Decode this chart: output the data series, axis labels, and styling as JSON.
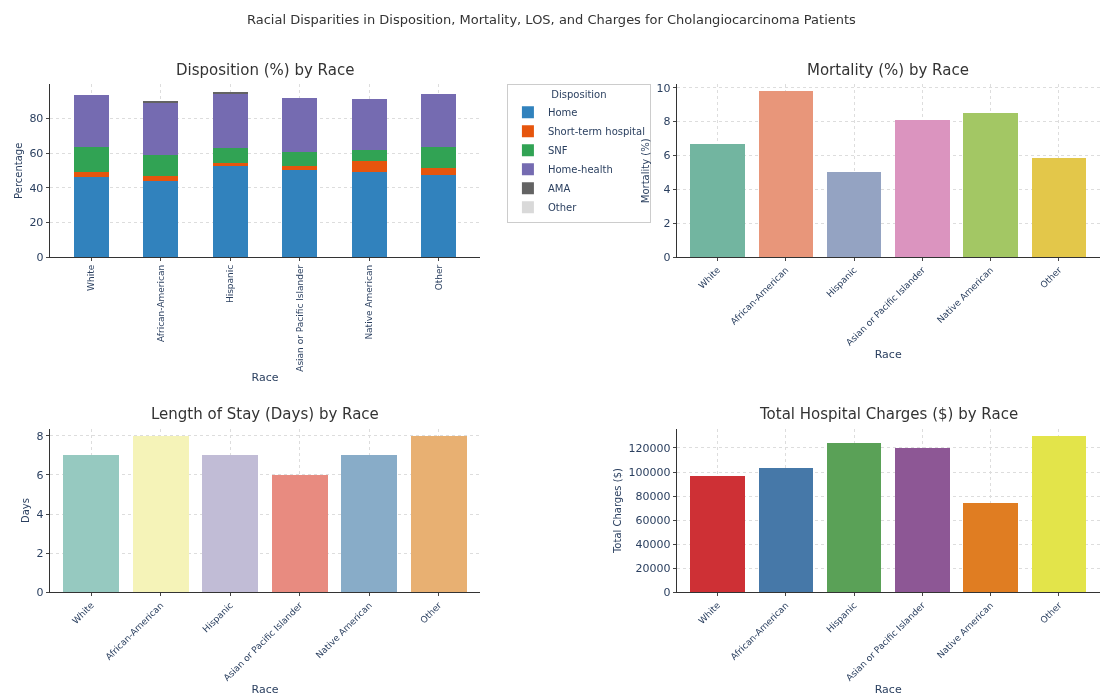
{
  "chart_data": [
    {
      "type": "bar",
      "title": "Disposition (%) by Race",
      "xlabel": "Race",
      "ylabel": "Percentage",
      "legend_title": "Disposition",
      "stacked": true,
      "legend": "right",
      "grid": true,
      "annotations": [
        "Racial Disparities in Disposition, Mortality, LOS, and Charges for Cholangiocarcinoma Patients"
      ],
      "categories": [
        "White",
        "African-American",
        "Hispanic",
        "Asian or Pacific Islander",
        "Native American",
        "Other"
      ],
      "ylim": [
        0,
        99.7
      ],
      "yticks": [
        0,
        20,
        40,
        60,
        80
      ],
      "series": [
        {
          "name": "Home",
          "color": "#3182bd",
          "values": [
            46.2,
            43.9,
            52.8,
            50.4,
            48.9,
            47.5
          ]
        },
        {
          "name": "Short-term hospital",
          "color": "#e6550d",
          "values": [
            3.1,
            3.1,
            1.5,
            2.0,
            6.4,
            3.9
          ]
        },
        {
          "name": "SNF",
          "color": "#31a354",
          "values": [
            14.3,
            11.9,
            8.7,
            8.1,
            6.5,
            12.4
          ]
        },
        {
          "name": "Home-health",
          "color": "#756bb1",
          "values": [
            29.7,
            30.2,
            30.9,
            31.1,
            29.4,
            30.1
          ]
        },
        {
          "name": "AMA",
          "color": "#636363",
          "values": [
            null,
            1.1,
            1.2,
            null,
            null,
            null
          ]
        },
        {
          "name": "Other",
          "color": "#d9d9d9",
          "values": [
            null,
            null,
            null,
            null,
            null,
            null
          ]
        }
      ]
    },
    {
      "type": "bar",
      "title": "Mortality (%) by Race",
      "xlabel": "Race",
      "ylabel": "Mortality (%)",
      "grid": true,
      "categories": [
        "White",
        "African-American",
        "Hispanic",
        "Asian or Pacific Islander",
        "Native American",
        "Other"
      ],
      "ylim": [
        0,
        10.2
      ],
      "yticks": [
        0,
        2,
        4,
        6,
        8,
        10
      ],
      "values": [
        6.7,
        9.78,
        5.05,
        8.11,
        8.53,
        5.88
      ],
      "colors": [
        "#72b5a0",
        "#e8967a",
        "#94a3c2",
        "#db94bf",
        "#a3c764",
        "#e3c74a"
      ]
    },
    {
      "type": "bar",
      "title": "Length of Stay (Days) by Race",
      "xlabel": "Race",
      "ylabel": "Days",
      "grid": true,
      "categories": [
        "White",
        "African-American",
        "Hispanic",
        "Asian or Pacific Islander",
        "Native American",
        "Other"
      ],
      "ylim": [
        0,
        8.36
      ],
      "yticks": [
        0,
        2,
        4,
        6,
        8
      ],
      "values": [
        7,
        8,
        7,
        6,
        7,
        8
      ],
      "colors": [
        "#96c9c0",
        "#f5f3b8",
        "#c1bcd6",
        "#e88b80",
        "#88acc8",
        "#e8b072"
      ]
    },
    {
      "type": "bar",
      "title": "Total Hospital Charges ($) by Race",
      "xlabel": "Race",
      "ylabel": "Total Charges ($)",
      "grid": true,
      "categories": [
        "White",
        "African-American",
        "Hispanic",
        "Asian or Pacific Islander",
        "Native American",
        "Other"
      ],
      "ylim": [
        0,
        136000
      ],
      "yticks": [
        0,
        20000,
        40000,
        60000,
        80000,
        100000,
        120000
      ],
      "values": [
        97000,
        103000,
        124000,
        120000,
        74000,
        130000
      ],
      "colors": [
        "#ce3035",
        "#4678a8",
        "#5aa157",
        "#8d5795",
        "#e07d22",
        "#e3e44a"
      ]
    }
  ]
}
